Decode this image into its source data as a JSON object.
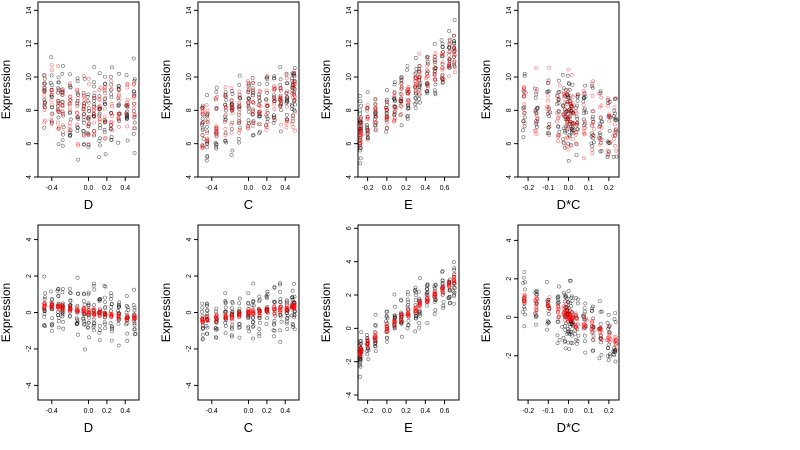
{
  "figure": {
    "colors": {
      "observed": "#000000",
      "fitted": "#ff0000",
      "axis": "#000000",
      "background": "#ffffff"
    }
  },
  "chart_data": [
    {
      "type": "scatter",
      "row": 1,
      "col": 1,
      "xlabel": "D",
      "ylabel": "Expression",
      "xlim": [
        -0.55,
        0.55
      ],
      "ylim": [
        4,
        14.5
      ],
      "xticks": [
        -0.4,
        0.0,
        0.2,
        0.4
      ],
      "xtick_labels": [
        "-0.4",
        "0.0",
        "0.2",
        "0.4"
      ],
      "yticks": [
        4,
        6,
        8,
        10,
        12,
        14
      ],
      "ytick_labels": [
        "4",
        "6",
        "8",
        "10",
        "12",
        "14"
      ],
      "x_levels": [
        -0.48,
        -0.4,
        -0.33,
        -0.28,
        -0.2,
        -0.12,
        -0.05,
        0.0,
        0.06,
        0.12,
        0.18,
        0.25,
        0.33,
        0.42,
        0.5
      ],
      "series": [
        {
          "role": "observed",
          "color": "#000000",
          "mean_trend": [
            8.8,
            8.6,
            8.4,
            8.2,
            8.0,
            7.9,
            7.9,
            7.8,
            7.8,
            7.8,
            7.8,
            7.8,
            7.9,
            8.0,
            8.2
          ],
          "spread": 1.6
        },
        {
          "role": "fitted",
          "color": "#ff0000",
          "mean_trend": [
            8.8,
            8.6,
            8.4,
            8.2,
            8.0,
            7.9,
            7.9,
            7.8,
            7.8,
            7.8,
            7.8,
            7.8,
            7.9,
            8.0,
            8.2
          ],
          "spread": 1.4
        }
      ]
    },
    {
      "type": "scatter",
      "row": 1,
      "col": 2,
      "xlabel": "C",
      "ylabel": "Expression",
      "xlim": [
        -0.55,
        0.55
      ],
      "ylim": [
        4,
        14.5
      ],
      "xticks": [
        -0.4,
        0.0,
        0.2,
        0.4
      ],
      "xtick_labels": [
        "-0.4",
        "0.0",
        "0.2",
        "0.4"
      ],
      "yticks": [
        4,
        6,
        8,
        10,
        12,
        14
      ],
      "ytick_labels": [
        "4",
        "6",
        "8",
        "10",
        "12",
        "14"
      ],
      "x_levels": [
        -0.5,
        -0.45,
        -0.35,
        -0.25,
        -0.18,
        -0.1,
        0.0,
        0.05,
        0.12,
        0.2,
        0.28,
        0.35,
        0.42,
        0.48,
        0.5
      ],
      "series": [
        {
          "role": "observed",
          "color": "#000000",
          "mean_trend": [
            6.8,
            7.0,
            7.3,
            7.6,
            7.8,
            8.0,
            8.2,
            8.3,
            8.4,
            8.5,
            8.6,
            8.7,
            8.8,
            9.0,
            9.2
          ],
          "spread": 1.5
        },
        {
          "role": "fitted",
          "color": "#ff0000",
          "mean_trend": [
            6.8,
            7.0,
            7.3,
            7.6,
            7.8,
            8.0,
            8.2,
            8.3,
            8.4,
            8.5,
            8.6,
            8.7,
            8.8,
            9.0,
            9.2
          ],
          "spread": 1.3
        }
      ]
    },
    {
      "type": "scatter",
      "row": 1,
      "col": 3,
      "xlabel": "E",
      "ylabel": "Expression",
      "xlim": [
        -0.3,
        0.75
      ],
      "ylim": [
        4,
        14.5
      ],
      "xticks": [
        -0.2,
        0.0,
        0.2,
        0.4,
        0.6
      ],
      "xtick_labels": [
        "-0.2",
        "0.0",
        "0.2",
        "0.4",
        "0.6"
      ],
      "yticks": [
        4,
        6,
        8,
        10,
        12,
        14
      ],
      "ytick_labels": [
        "4",
        "6",
        "8",
        "10",
        "12",
        "14"
      ],
      "x_levels": [
        -0.28,
        -0.27,
        -0.2,
        -0.12,
        0.0,
        0.08,
        0.15,
        0.22,
        0.3,
        0.34,
        0.42,
        0.5,
        0.58,
        0.65,
        0.7
      ],
      "series": [
        {
          "role": "observed",
          "color": "#000000",
          "mean_trend": [
            6.6,
            6.8,
            7.2,
            7.6,
            7.9,
            8.3,
            8.7,
            9.1,
            9.5,
            9.8,
            10.1,
            10.5,
            10.9,
            11.2,
            11.5
          ],
          "spread": 1.1
        },
        {
          "role": "fitted",
          "color": "#ff0000",
          "mean_trend": [
            6.6,
            6.8,
            7.2,
            7.6,
            7.9,
            8.3,
            8.7,
            9.1,
            9.5,
            9.8,
            10.1,
            10.5,
            10.9,
            11.2,
            11.5
          ],
          "spread": 0.8
        }
      ]
    },
    {
      "type": "scatter",
      "row": 1,
      "col": 4,
      "xlabel": "D*C",
      "ylabel": "Expression",
      "xlim": [
        -0.25,
        0.25
      ],
      "ylim": [
        4,
        14.5
      ],
      "xticks": [
        -0.2,
        -0.1,
        0.0,
        0.1,
        0.2
      ],
      "xtick_labels": [
        "-0.2",
        "-0.1",
        "0.0",
        "0.1",
        "0.2"
      ],
      "yticks": [
        4,
        6,
        8,
        10,
        12,
        14
      ],
      "ytick_labels": [
        "4",
        "6",
        "8",
        "10",
        "12",
        "14"
      ],
      "x_levels": [
        -0.22,
        -0.16,
        -0.1,
        -0.05,
        -0.02,
        -0.01,
        0.0,
        0.01,
        0.02,
        0.04,
        0.08,
        0.12,
        0.16,
        0.2,
        0.23
      ],
      "series": [
        {
          "role": "observed",
          "color": "#000000",
          "mean_trend": [
            8.3,
            8.2,
            8.1,
            8.0,
            7.9,
            7.9,
            7.8,
            7.8,
            7.8,
            7.7,
            7.6,
            7.5,
            7.4,
            7.3,
            7.2
          ],
          "spread": 1.6
        },
        {
          "role": "fitted",
          "color": "#ff0000",
          "mean_trend": [
            8.3,
            8.2,
            8.1,
            8.0,
            7.9,
            7.9,
            7.8,
            7.8,
            7.8,
            7.7,
            7.6,
            7.5,
            7.4,
            7.3,
            7.2
          ],
          "spread": 1.6
        }
      ]
    },
    {
      "type": "scatter",
      "row": 2,
      "col": 1,
      "xlabel": "D",
      "ylabel": "Expression",
      "xlim": [
        -0.55,
        0.55
      ],
      "ylim": [
        -4.8,
        4.8
      ],
      "xticks": [
        -0.4,
        0.0,
        0.2,
        0.4
      ],
      "xtick_labels": [
        "-0.4",
        "0.0",
        "0.2",
        "0.4"
      ],
      "yticks": [
        -4,
        -2,
        0,
        2,
        4
      ],
      "ytick_labels": [
        "-4",
        "-2",
        "0",
        "2",
        "4"
      ],
      "x_levels": [
        -0.48,
        -0.4,
        -0.33,
        -0.28,
        -0.2,
        -0.12,
        -0.05,
        0.0,
        0.06,
        0.12,
        0.18,
        0.25,
        0.33,
        0.42,
        0.5
      ],
      "series": [
        {
          "role": "observed",
          "color": "#000000",
          "mean_trend": [
            0.4,
            0.35,
            0.3,
            0.25,
            0.2,
            0.15,
            0.1,
            0.05,
            0.0,
            -0.05,
            -0.1,
            -0.15,
            -0.2,
            -0.25,
            -0.3
          ],
          "spread": 1.0
        },
        {
          "role": "fitted",
          "color": "#ff0000",
          "mean_trend": [
            0.4,
            0.35,
            0.3,
            0.25,
            0.2,
            0.15,
            0.1,
            0.05,
            0.0,
            -0.05,
            -0.1,
            -0.15,
            -0.2,
            -0.25,
            -0.3
          ],
          "spread": 0.12
        }
      ]
    },
    {
      "type": "scatter",
      "row": 2,
      "col": 2,
      "xlabel": "C",
      "ylabel": "Expression",
      "xlim": [
        -0.55,
        0.55
      ],
      "ylim": [
        -4.8,
        4.8
      ],
      "xticks": [
        -0.4,
        0.0,
        0.2,
        0.4
      ],
      "xtick_labels": [
        "-0.4",
        "0.0",
        "0.2",
        "0.4"
      ],
      "yticks": [
        -4,
        -2,
        0,
        2,
        4
      ],
      "ytick_labels": [
        "-4",
        "-2",
        "0",
        "2",
        "4"
      ],
      "x_levels": [
        -0.5,
        -0.45,
        -0.35,
        -0.25,
        -0.18,
        -0.1,
        0.0,
        0.05,
        0.12,
        0.2,
        0.28,
        0.35,
        0.42,
        0.48,
        0.5
      ],
      "series": [
        {
          "role": "observed",
          "color": "#000000",
          "mean_trend": [
            -0.4,
            -0.35,
            -0.3,
            -0.25,
            -0.2,
            -0.15,
            -0.05,
            0.0,
            0.05,
            0.1,
            0.15,
            0.2,
            0.25,
            0.3,
            0.35
          ],
          "spread": 1.0
        },
        {
          "role": "fitted",
          "color": "#ff0000",
          "mean_trend": [
            -0.4,
            -0.35,
            -0.3,
            -0.25,
            -0.2,
            -0.15,
            -0.05,
            0.0,
            0.05,
            0.1,
            0.15,
            0.2,
            0.25,
            0.3,
            0.35
          ],
          "spread": 0.15
        }
      ]
    },
    {
      "type": "scatter",
      "row": 2,
      "col": 3,
      "xlabel": "E",
      "ylabel": "Expression",
      "xlim": [
        -0.3,
        0.75
      ],
      "ylim": [
        -4.3,
        6.2
      ],
      "xticks": [
        -0.2,
        0.0,
        0.2,
        0.4,
        0.6
      ],
      "xtick_labels": [
        "-0.2",
        "0.0",
        "0.2",
        "0.4",
        "0.6"
      ],
      "yticks": [
        -4,
        -2,
        0,
        2,
        4,
        6
      ],
      "ytick_labels": [
        "-4",
        "-2",
        "0",
        "2",
        "4",
        "6"
      ],
      "x_levels": [
        -0.28,
        -0.27,
        -0.2,
        -0.12,
        0.0,
        0.08,
        0.15,
        0.22,
        0.3,
        0.34,
        0.42,
        0.5,
        0.58,
        0.65,
        0.7
      ],
      "series": [
        {
          "role": "observed",
          "color": "#000000",
          "mean_trend": [
            -1.4,
            -1.3,
            -0.9,
            -0.5,
            0.0,
            0.3,
            0.6,
            0.9,
            1.2,
            1.4,
            1.7,
            2.0,
            2.3,
            2.6,
            2.9
          ],
          "spread": 0.9
        },
        {
          "role": "fitted",
          "color": "#ff0000",
          "mean_trend": [
            -1.4,
            -1.3,
            -0.9,
            -0.5,
            0.0,
            0.3,
            0.6,
            0.9,
            1.2,
            1.4,
            1.7,
            2.0,
            2.3,
            2.6,
            2.9
          ],
          "spread": 0.2
        }
      ]
    },
    {
      "type": "scatter",
      "row": 2,
      "col": 4,
      "xlabel": "D*C",
      "ylabel": "Expression",
      "xlim": [
        -0.25,
        0.25
      ],
      "ylim": [
        -4.3,
        4.8
      ],
      "xticks": [
        -0.2,
        -0.1,
        0.0,
        0.1,
        0.2
      ],
      "xtick_labels": [
        "-0.2",
        "-0.1",
        "0.0",
        "0.1",
        "0.2"
      ],
      "yticks": [
        -2,
        0,
        2,
        4
      ],
      "ytick_labels": [
        "-2",
        "0",
        "2",
        "4"
      ],
      "x_levels": [
        -0.22,
        -0.16,
        -0.1,
        -0.05,
        -0.02,
        -0.01,
        0.0,
        0.01,
        0.02,
        0.04,
        0.08,
        0.12,
        0.16,
        0.2,
        0.23
      ],
      "series": [
        {
          "role": "observed",
          "color": "#000000",
          "mean_trend": [
            1.0,
            0.8,
            0.6,
            0.4,
            0.25,
            0.15,
            0.1,
            0.0,
            -0.1,
            -0.2,
            -0.4,
            -0.6,
            -0.8,
            -1.0,
            -1.2
          ],
          "spread": 1.1
        },
        {
          "role": "fitted",
          "color": "#ff0000",
          "mean_trend": [
            1.0,
            0.8,
            0.6,
            0.4,
            0.25,
            0.15,
            0.1,
            0.0,
            -0.1,
            -0.2,
            -0.4,
            -0.6,
            -0.8,
            -1.0,
            -1.2
          ],
          "spread": 0.3
        }
      ]
    }
  ]
}
